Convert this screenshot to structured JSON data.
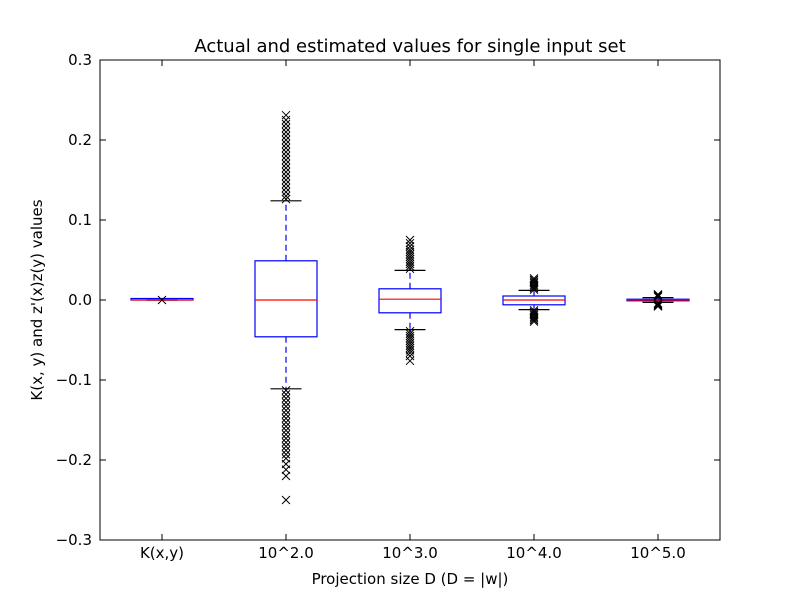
{
  "chart_data": {
    "type": "box",
    "title": "Actual and estimated values for single input set",
    "xlabel": "Projection size D (D = |w|)",
    "ylabel": "K(x, y) and z'(x)z(y) values",
    "ylim": [
      -0.3,
      0.3
    ],
    "yticks": [
      -0.3,
      -0.2,
      -0.1,
      0.0,
      0.1,
      0.2,
      0.3
    ],
    "ytick_labels": [
      "−0.3",
      "−0.2",
      "−0.1",
      "0.0",
      "0.1",
      "0.2",
      "0.3"
    ],
    "categories": [
      "K(x,y)",
      "10^2.0",
      "10^3.0",
      "10^4.0",
      "10^5.0"
    ],
    "grid": false,
    "colors": {
      "box": "#0000ff",
      "median": "#ff0000",
      "whisker": "#0000ff",
      "cap": "#000000",
      "flier": "#000000"
    },
    "boxes": [
      {
        "q1": 0.0,
        "median": 0.0,
        "q3": 0.0,
        "whislo": 0.0,
        "whishi": 0.0,
        "fliers": [
          0.0
        ]
      },
      {
        "q1": -0.046,
        "median": 0.0,
        "q3": 0.049,
        "whislo": -0.111,
        "whishi": 0.124,
        "fliers": [
          0.126,
          0.13,
          0.135,
          0.14,
          0.145,
          0.15,
          0.155,
          0.16,
          0.165,
          0.17,
          0.175,
          0.18,
          0.185,
          0.19,
          0.195,
          0.2,
          0.205,
          0.21,
          0.215,
          0.22,
          0.225,
          0.231,
          -0.113,
          -0.118,
          -0.123,
          -0.128,
          -0.133,
          -0.138,
          -0.143,
          -0.148,
          -0.153,
          -0.158,
          -0.163,
          -0.168,
          -0.173,
          -0.178,
          -0.183,
          -0.188,
          -0.193,
          -0.198,
          -0.205,
          -0.212,
          -0.22,
          -0.25
        ]
      },
      {
        "q1": -0.016,
        "median": 0.001,
        "q3": 0.014,
        "whislo": -0.037,
        "whishi": 0.037,
        "fliers": [
          0.039,
          0.042,
          0.045,
          0.048,
          0.051,
          0.054,
          0.057,
          0.06,
          0.063,
          0.067,
          0.071,
          0.075,
          -0.039,
          -0.042,
          -0.045,
          -0.048,
          -0.051,
          -0.054,
          -0.057,
          -0.06,
          -0.063,
          -0.066,
          -0.07,
          -0.076
        ]
      },
      {
        "q1": -0.006,
        "median": 0.0,
        "q3": 0.005,
        "whislo": -0.012,
        "whishi": 0.012,
        "fliers": [
          0.013,
          0.015,
          0.017,
          0.019,
          0.021,
          0.023,
          0.025,
          0.027,
          -0.013,
          -0.015,
          -0.017,
          -0.019,
          -0.021,
          -0.023,
          -0.025,
          -0.027
        ]
      },
      {
        "q1": -0.001,
        "median": 0.0,
        "q3": 0.001,
        "whislo": -0.003,
        "whishi": 0.003,
        "fliers": [
          0.004,
          0.005,
          0.006,
          0.007,
          -0.004,
          -0.005,
          -0.006,
          -0.007,
          -0.008
        ]
      }
    ]
  }
}
